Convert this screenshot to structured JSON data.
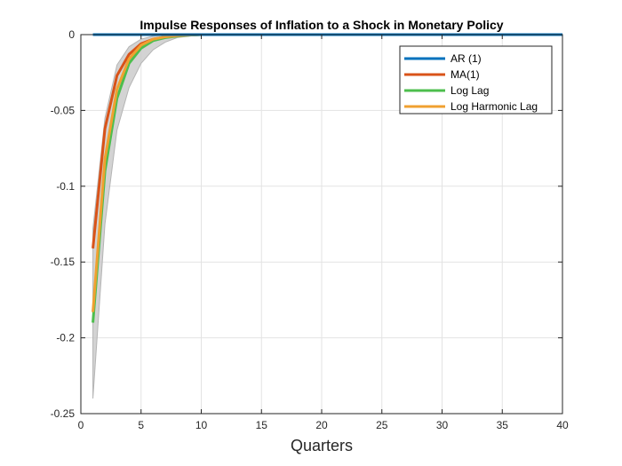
{
  "chart_data": {
    "type": "line",
    "title": "Impulse Responses of Inflation to a Shock in Monetary Policy",
    "xlabel": "Quarters",
    "ylabel": "",
    "xlim": [
      0,
      40
    ],
    "ylim": [
      -0.25,
      0
    ],
    "xticks": [
      0,
      5,
      10,
      15,
      20,
      25,
      30,
      35,
      40
    ],
    "yticks": [
      0,
      -0.05,
      -0.1,
      -0.15,
      -0.2,
      -0.25
    ],
    "xtick_labels": [
      "0",
      "5",
      "10",
      "15",
      "20",
      "25",
      "30",
      "35",
      "40"
    ],
    "ytick_labels": [
      "0",
      "-0.05",
      "-0.1",
      "-0.15",
      "-0.2",
      "-0.25"
    ],
    "grid": true,
    "legend_position": "top-right",
    "band": {
      "color": "#c8c8c8",
      "edge_color": "#b4b4b4",
      "x": [
        1,
        2,
        3,
        4,
        5,
        6,
        7,
        8,
        9,
        10,
        12,
        15,
        20,
        40
      ],
      "lower": [
        -0.24,
        -0.125,
        -0.063,
        -0.035,
        -0.019,
        -0.01,
        -0.005,
        -0.002,
        -0.001,
        0,
        0,
        0,
        0,
        0
      ],
      "upper": [
        -0.128,
        -0.055,
        -0.02,
        -0.008,
        -0.003,
        -0.001,
        0,
        0,
        0,
        0,
        0,
        0,
        0,
        0
      ]
    },
    "series": [
      {
        "name": "AR (1)",
        "color": "#0072bd",
        "x": [
          1,
          40
        ],
        "values": [
          0,
          0
        ]
      },
      {
        "name": "MA(1)",
        "color": "#d95319",
        "x": [
          1,
          2,
          3,
          4,
          5,
          6,
          7,
          8,
          9,
          10,
          12,
          15,
          20,
          40
        ],
        "values": [
          -0.141,
          -0.062,
          -0.027,
          -0.013,
          -0.006,
          -0.003,
          -0.0015,
          -0.0007,
          -0.0003,
          0,
          0,
          0,
          0,
          0
        ]
      },
      {
        "name": "Log Lag",
        "color": "#4dbe4d",
        "x": [
          1,
          2,
          3,
          4,
          5,
          6,
          7,
          8,
          9,
          10,
          12,
          15,
          20,
          40
        ],
        "values": [
          -0.19,
          -0.09,
          -0.042,
          -0.019,
          -0.009,
          -0.004,
          -0.002,
          -0.001,
          -0.0004,
          0,
          0,
          0,
          0,
          0
        ]
      },
      {
        "name": "Log Harmonic Lag",
        "color": "#f0a030",
        "x": [
          1,
          2,
          3,
          4,
          5,
          6,
          7,
          8,
          9,
          10,
          12,
          15,
          20,
          40
        ],
        "values": [
          -0.183,
          -0.082,
          -0.036,
          -0.016,
          -0.007,
          -0.003,
          -0.0015,
          -0.0007,
          -0.0003,
          0,
          0,
          0,
          0,
          0
        ]
      }
    ]
  }
}
